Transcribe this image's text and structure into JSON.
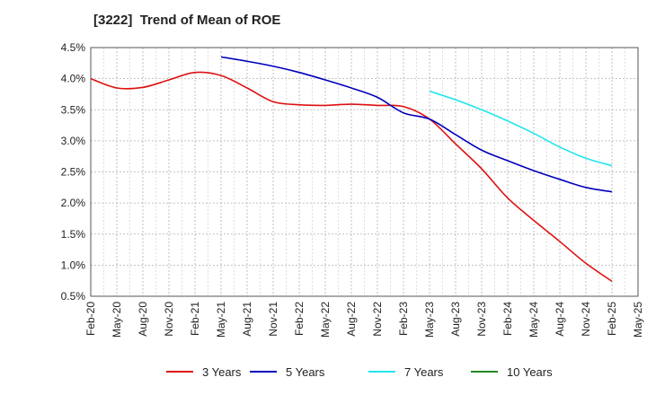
{
  "chart_data": {
    "type": "line",
    "title": "[3222]  Trend of Mean of ROE",
    "xlabel": "",
    "ylabel": "",
    "ylim": [
      0.5,
      4.5
    ],
    "yticks": [
      0.5,
      1.0,
      1.5,
      2.0,
      2.5,
      3.0,
      3.5,
      4.0,
      4.5
    ],
    "ytick_labels": [
      "0.5%",
      "1.0%",
      "1.5%",
      "2.0%",
      "2.5%",
      "3.0%",
      "3.5%",
      "4.0%",
      "4.5%"
    ],
    "x_tick_labels": [
      "Feb-20",
      "May-20",
      "Aug-20",
      "Nov-20",
      "Feb-21",
      "May-21",
      "Aug-21",
      "Nov-21",
      "Feb-22",
      "May-22",
      "Aug-22",
      "Nov-22",
      "Feb-23",
      "May-23",
      "Aug-23",
      "Nov-23",
      "Feb-24",
      "May-24",
      "Aug-24",
      "Nov-24",
      "Feb-25",
      "May-25"
    ],
    "grid": true,
    "legend_position": "bottom",
    "series": [
      {
        "name": "3 Years",
        "color": "#dd1111",
        "start_index": 0,
        "values": [
          4.0,
          3.85,
          3.86,
          3.98,
          4.1,
          4.05,
          3.85,
          3.63,
          3.58,
          3.57,
          3.59,
          3.57,
          3.55,
          3.35,
          2.95,
          2.55,
          2.08,
          1.72,
          1.38,
          1.03,
          0.74
        ]
      },
      {
        "name": "5 Years",
        "color": "#0000bb",
        "start_index": 5,
        "values": [
          4.35,
          4.28,
          4.2,
          4.1,
          3.98,
          3.85,
          3.7,
          3.45,
          3.35,
          3.1,
          2.85,
          2.68,
          2.52,
          2.38,
          2.25,
          2.18
        ]
      },
      {
        "name": "7 Years",
        "color": "#22e5ee",
        "start_index": 13,
        "values": [
          3.8,
          3.66,
          3.5,
          3.32,
          3.12,
          2.9,
          2.72,
          2.6
        ]
      },
      {
        "name": "10 Years",
        "color": "#228822",
        "start_index": 0,
        "values": []
      }
    ]
  }
}
